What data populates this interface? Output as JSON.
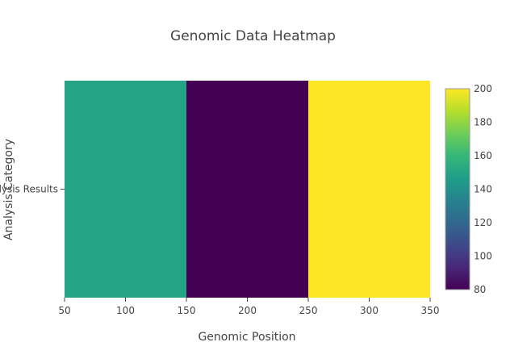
{
  "chart_data": {
    "type": "heatmap",
    "title": "Genomic Data Heatmap",
    "xlabel": "Genomic Position",
    "ylabel": "Analysis Category",
    "x": [
      100,
      200,
      300
    ],
    "y": [
      "Analysis Results"
    ],
    "z": [
      [
        150,
        80,
        200
      ]
    ],
    "xlim": [
      50,
      350
    ],
    "x_ticks": [
      50,
      100,
      150,
      200,
      250,
      300,
      350
    ],
    "colorscale": "Viridis",
    "zlim": [
      80,
      200
    ],
    "colorbar_ticks": [
      80,
      100,
      120,
      140,
      160,
      180,
      200
    ],
    "colors": {
      "viridis_stops": [
        "#440154",
        "#482878",
        "#3e4989",
        "#31688e",
        "#26828e",
        "#1f9e89",
        "#35b779",
        "#6ece58",
        "#b5de2b",
        "#fde725"
      ]
    }
  }
}
